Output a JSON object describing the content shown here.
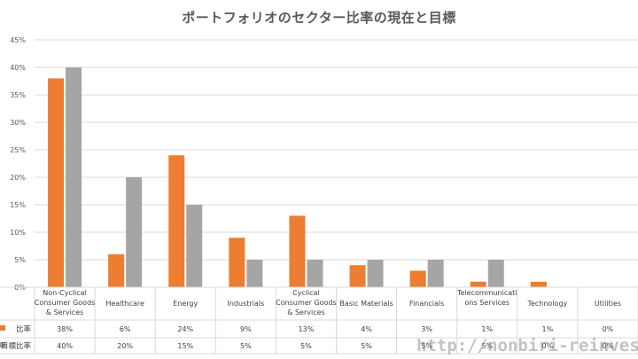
{
  "title": "ポートフォリオのセクター比率の現在と目標",
  "watermark": "http://nonbiri-reinvest.n",
  "chart_data": {
    "type": "bar",
    "title": "ポートフォリオのセクター比率の現在と目標",
    "categories": [
      [
        "Non-Cyclical",
        "Consumer Goods",
        "& Services"
      ],
      [
        "Healthcare"
      ],
      [
        "Energy"
      ],
      [
        "Industrials"
      ],
      [
        "Cyclical",
        "Consumer Goods",
        "& Services"
      ],
      [
        "Basic Materials"
      ],
      [
        "Financials"
      ],
      [
        "Telecommunicati",
        "ons Services"
      ],
      [
        "Technology"
      ],
      [
        "Utilities"
      ]
    ],
    "series": [
      {
        "name": "比率",
        "values": [
          38,
          6,
          24,
          9,
          13,
          4,
          3,
          1,
          1,
          0
        ],
        "labels": [
          "38%",
          "6%",
          "24%",
          "9%",
          "13%",
          "4%",
          "3%",
          "1%",
          "1%",
          "0%"
        ],
        "color": "#ED7D31"
      },
      {
        "name": "目標比率",
        "values": [
          40,
          20,
          15,
          5,
          5,
          5,
          5,
          5,
          0,
          0
        ],
        "labels": [
          "40%",
          "20%",
          "15%",
          "5%",
          "5%",
          "5%",
          "5%",
          "5%",
          "0%",
          "0%"
        ],
        "color": "#A5A5A5"
      }
    ],
    "ylim": [
      0,
      45
    ],
    "yticks": [
      "0%",
      "5%",
      "10%",
      "15%",
      "20%",
      "25%",
      "30%",
      "35%",
      "40%",
      "45%"
    ],
    "grid": true,
    "legend": "data-table"
  }
}
